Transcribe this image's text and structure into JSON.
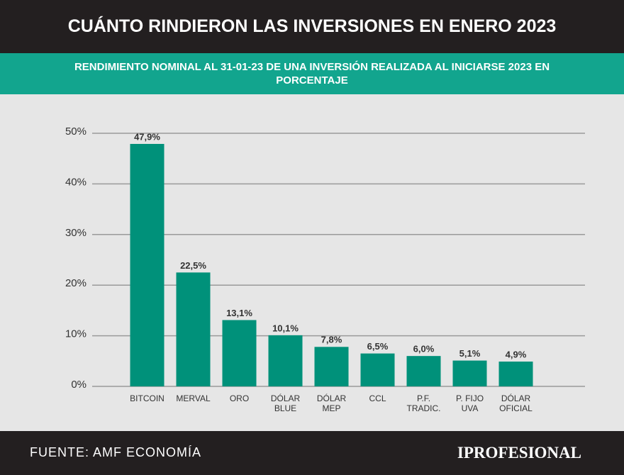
{
  "chart_data": {
    "type": "bar",
    "title": "CUÁNTO RINDIERON LAS INVERSIONES EN ENERO 2023",
    "subtitle": "RENDIMIENTO NOMINAL AL 31-01-23 DE UNA INVERSIÓN REALIZADA AL INICIARSE 2023 EN PORCENTAJE",
    "categories": [
      "BITCOIN",
      "MERVAL",
      "ORO",
      "DÓLAR BLUE",
      "DÓLAR MEP",
      "CCL",
      "P.F. TRADIC.",
      "P. FIJO UVA",
      "DÓLAR OFICIAL"
    ],
    "values": [
      47.9,
      22.5,
      13.1,
      10.1,
      7.8,
      6.5,
      6.0,
      5.1,
      4.9
    ],
    "value_labels": [
      "47,9%",
      "22,5%",
      "13,1%",
      "10,1%",
      "7,8%",
      "6,5%",
      "6,0%",
      "5,1%",
      "4,9%"
    ],
    "color": "#00917a",
    "ylim": [
      0,
      50
    ],
    "yticks": [
      {
        "value": 0,
        "label": "0%"
      },
      {
        "value": 10,
        "label": "10%"
      },
      {
        "value": 20,
        "label": "20%"
      },
      {
        "value": 30,
        "label": "30%"
      },
      {
        "value": 40,
        "label": "40%"
      },
      {
        "value": 50,
        "label": "50%"
      }
    ],
    "grid": true,
    "source": "FUENTE: AMF ECONOMÍA",
    "brand": "IPROFESIONAL"
  }
}
